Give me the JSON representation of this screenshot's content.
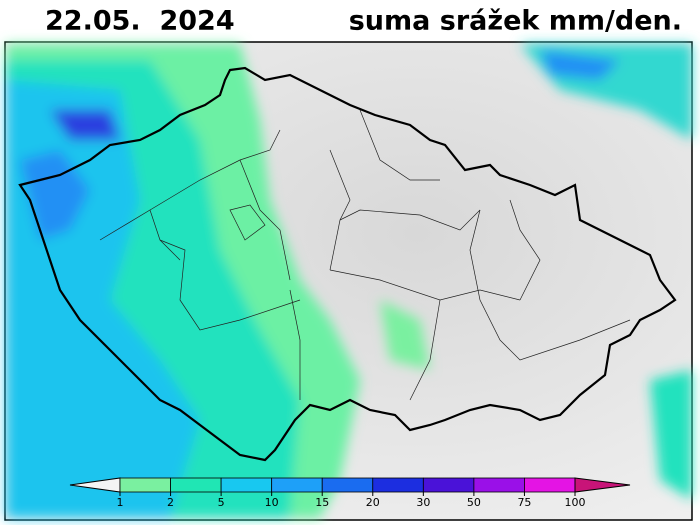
{
  "header": {
    "date": "22.05.  2024",
    "title": "suma srážek mm/den."
  },
  "colorbar": {
    "ticks": [
      1,
      2,
      5,
      10,
      15,
      20,
      30,
      50,
      75,
      100
    ],
    "colors": [
      "#f4f4f4",
      "#7af0a0",
      "#20e6b4",
      "#18c8f0",
      "#1ea0f8",
      "#1a6cf0",
      "#1c2ee0",
      "#4a12d8",
      "#9a10e8",
      "#e414e4",
      "#c81478"
    ]
  }
}
